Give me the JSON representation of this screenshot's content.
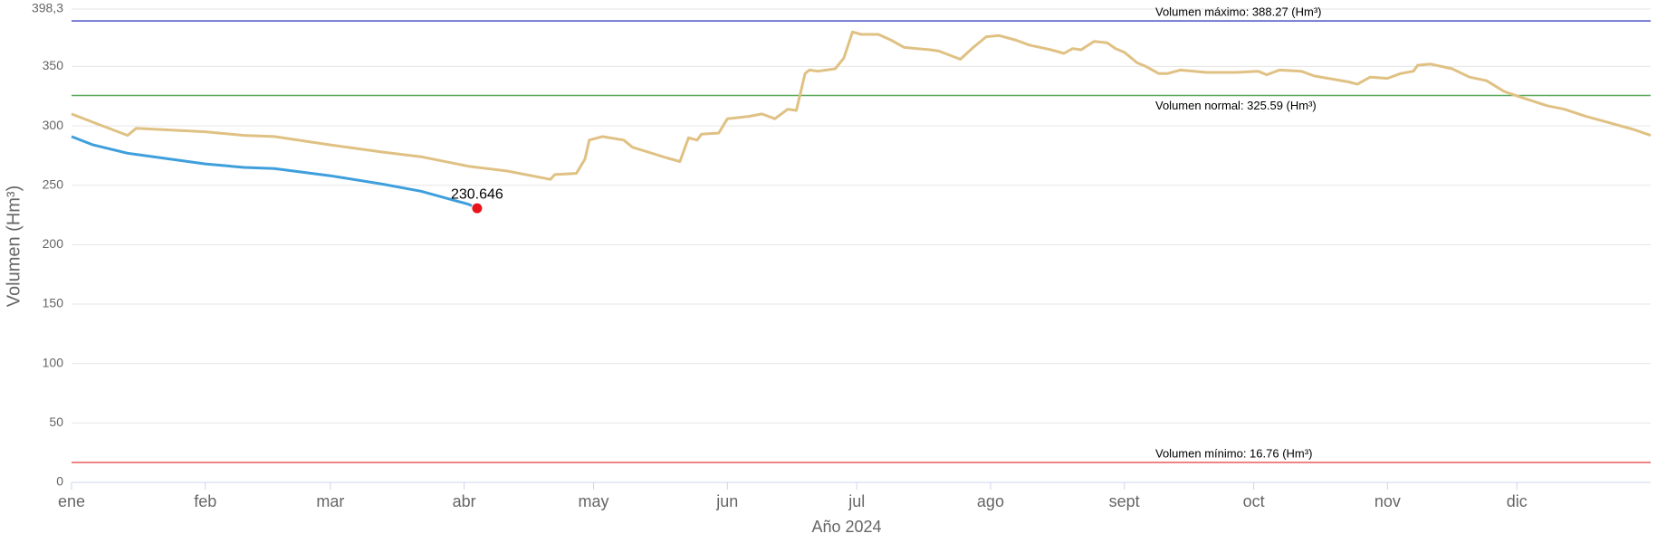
{
  "chart_data": {
    "type": "line",
    "x_label": "Año 2024",
    "y_label": "Volumen (Hm³)",
    "xlim": [
      1,
      367
    ],
    "xticks": [
      {
        "value": 1,
        "label": "ene"
      },
      {
        "value": 32,
        "label": "feb"
      },
      {
        "value": 61,
        "label": "mar"
      },
      {
        "value": 92,
        "label": "abr"
      },
      {
        "value": 122,
        "label": "may"
      },
      {
        "value": 153,
        "label": "jun"
      },
      {
        "value": 183,
        "label": "jul"
      },
      {
        "value": 214,
        "label": "ago"
      },
      {
        "value": 245,
        "label": "sept"
      },
      {
        "value": 275,
        "label": "oct"
      },
      {
        "value": 306,
        "label": "nov"
      },
      {
        "value": 336,
        "label": "dic"
      }
    ],
    "ylim": [
      0,
      398.3
    ],
    "yticks": [
      0,
      50,
      100,
      150,
      200,
      250,
      300,
      350,
      {
        "value": 398.3,
        "label": "398,3"
      }
    ],
    "grid": true,
    "series": [
      {
        "color": "#e0c184",
        "x": [
          1,
          6,
          14,
          16,
          32,
          41,
          48,
          61,
          73,
          82,
          93,
          102,
          112,
          113,
          118,
          120,
          121,
          124,
          129,
          131,
          139,
          142,
          144,
          146,
          147,
          151,
          153,
          158,
          161,
          164,
          167,
          169,
          171,
          172,
          174,
          178,
          180,
          182,
          184,
          188,
          191,
          194,
          200,
          202,
          207,
          210,
          213,
          216,
          220,
          223,
          228,
          231,
          233,
          235,
          238,
          241,
          243,
          245,
          248,
          250,
          253,
          255,
          258,
          264,
          271,
          276,
          278,
          281,
          286,
          289,
          297,
          299,
          302,
          306,
          309,
          312,
          313,
          316,
          321,
          325,
          329,
          333,
          337,
          343,
          347,
          352,
          358,
          363,
          367
        ],
        "values": [
          310,
          303,
          292,
          298,
          295,
          292,
          291,
          284,
          278,
          274,
          266,
          262,
          255,
          259,
          260,
          272,
          288,
          291,
          288,
          282,
          273,
          270,
          290,
          288,
          293,
          294,
          306,
          308,
          310,
          306,
          314,
          313,
          344,
          347,
          346,
          348,
          357,
          379,
          377,
          377,
          372,
          366,
          364,
          363,
          356,
          366,
          375,
          376,
          372,
          368,
          364,
          361,
          365,
          364,
          371,
          370,
          365,
          362,
          353,
          350,
          344,
          344,
          347,
          345,
          345,
          346,
          343,
          347,
          346,
          342,
          337,
          335,
          341,
          340,
          344,
          346,
          351,
          352,
          348,
          341,
          338,
          329,
          324,
          317,
          314,
          308,
          302,
          297,
          292
        ]
      },
      {
        "color": "#3f9fdc",
        "x": [
          1,
          6,
          14,
          16,
          32,
          41,
          48,
          61,
          73,
          82,
          93,
          95
        ],
        "values": [
          291,
          284,
          277,
          276,
          268,
          265,
          264,
          258,
          251,
          245,
          234,
          230.646
        ],
        "value_labels": [
          null,
          null,
          null,
          null,
          null,
          null,
          null,
          null,
          null,
          null,
          null,
          "230.646"
        ]
      }
    ],
    "reference_lines": [
      {
        "value": 388.27,
        "label": "Volumen máximo: 388.27 (Hm³)",
        "color": "#4a4fc4"
      },
      {
        "value": 325.59,
        "label": "Volumen normal: 325.59 (Hm³)",
        "color": "#5aa85a"
      },
      {
        "value": 16.76,
        "label": "Volumen mínimo: 16.76 (Hm³)",
        "color": "#e85c5c"
      }
    ]
  }
}
